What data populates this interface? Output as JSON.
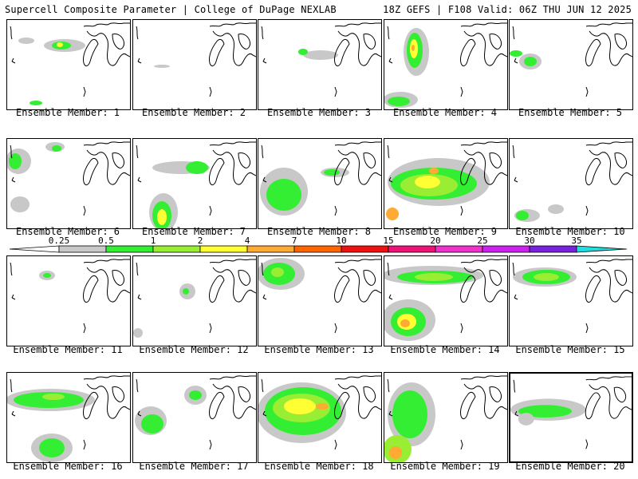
{
  "header": {
    "left": "Supercell Composite Parameter | College of DuPage NEXLAB",
    "right": "18Z GEFS | F108 Valid: 06Z THU JUN 12 2025"
  },
  "members": [
    {
      "label": "Ensemble Member: 1"
    },
    {
      "label": "Ensemble Member: 2"
    },
    {
      "label": "Ensemble Member: 3"
    },
    {
      "label": "Ensemble Member: 4"
    },
    {
      "label": "Ensemble Member: 5"
    },
    {
      "label": "Ensemble Member: 6"
    },
    {
      "label": "Ensemble Member: 7"
    },
    {
      "label": "Ensemble Member: 8"
    },
    {
      "label": "Ensemble Member: 9"
    },
    {
      "label": "Ensemble Member: 10"
    },
    {
      "label": "Ensemble Member: 11"
    },
    {
      "label": "Ensemble Member: 12"
    },
    {
      "label": "Ensemble Member: 13"
    },
    {
      "label": "Ensemble Member: 14"
    },
    {
      "label": "Ensemble Member: 15"
    },
    {
      "label": "Ensemble Member: 16"
    },
    {
      "label": "Ensemble Member: 17"
    },
    {
      "label": "Ensemble Member: 18"
    },
    {
      "label": "Ensemble Member: 19"
    },
    {
      "label": "Ensemble Member: 20",
      "selected": true
    }
  ],
  "colorbar": {
    "levels": [
      "0.25",
      "0.5",
      "1",
      "2",
      "4",
      "7",
      "10",
      "15",
      "20",
      "25",
      "30",
      "35"
    ],
    "colors": [
      "#c8c8c8",
      "#33ee33",
      "#99ee33",
      "#ffff33",
      "#ffaa33",
      "#ff6600",
      "#ee1111",
      "#ee1177",
      "#ee33cc",
      "#cc22ee",
      "#7722dd",
      "#aa66dd",
      "#22dddd"
    ]
  },
  "colors": {
    "gray": "#c8c8c8",
    "green": "#33ee33",
    "lightgreen": "#99ee33",
    "yellow": "#ffff33",
    "orange": "#ffaa33",
    "darkorange": "#ff6600"
  }
}
